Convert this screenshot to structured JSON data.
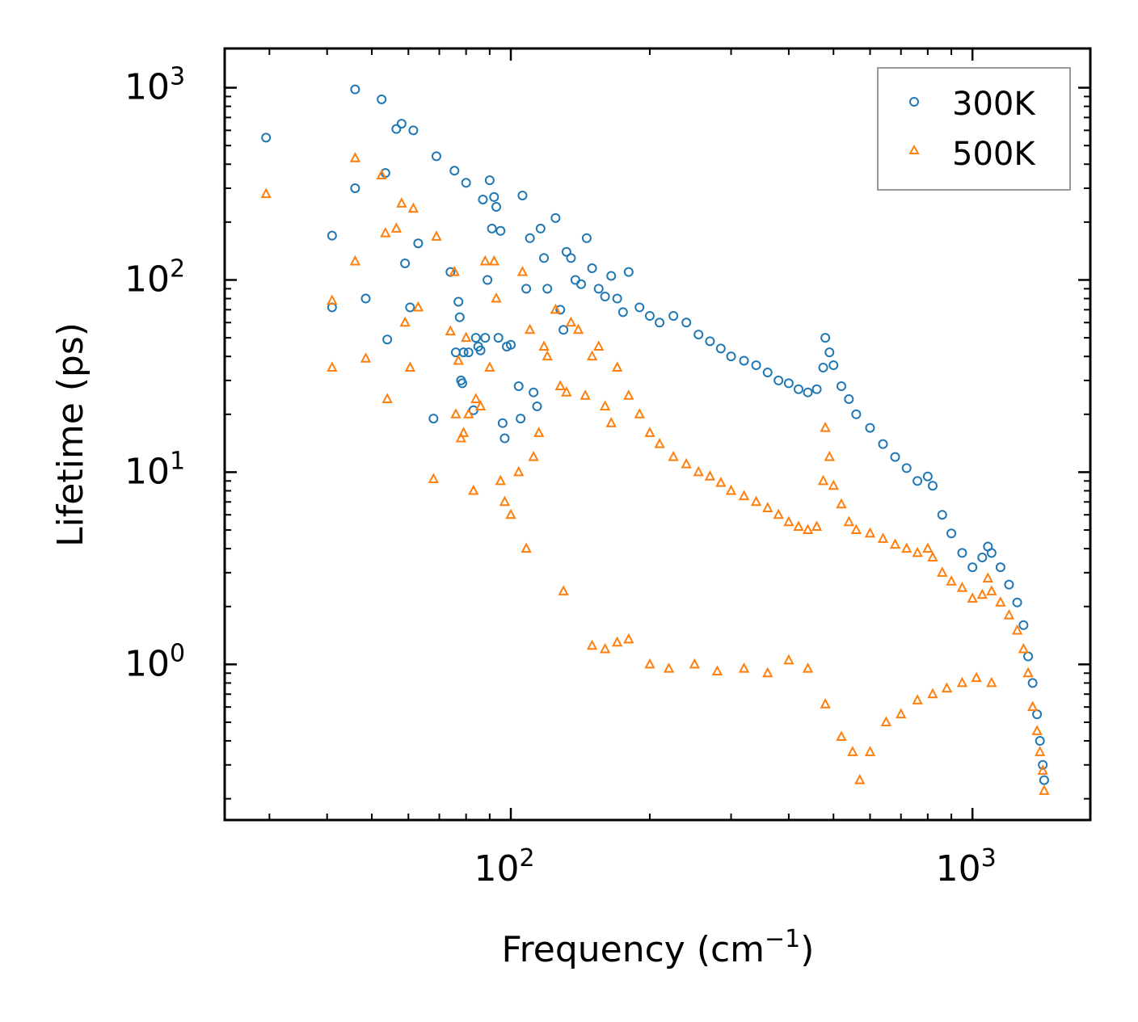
{
  "chart_data": {
    "type": "scatter",
    "title": "",
    "xlabel": "Frequency (cm",
    "xlabel_sup": "−1",
    "xlabel_end": ")",
    "ylabel": "Lifetime (ps)",
    "xscale": "log",
    "yscale": "log",
    "xlim": [
      24,
      1800
    ],
    "ylim": [
      0.155,
      1600
    ],
    "x_ticks": [
      {
        "base": "10",
        "exp": "2",
        "value": 100
      },
      {
        "base": "10",
        "exp": "3",
        "value": 1000
      }
    ],
    "y_ticks": [
      {
        "base": "10",
        "exp": "0",
        "value": 1
      },
      {
        "base": "10",
        "exp": "1",
        "value": 10
      },
      {
        "base": "10",
        "exp": "2",
        "value": 100
      },
      {
        "base": "10",
        "exp": "3",
        "value": 1000
      }
    ],
    "legend_position": "top-right",
    "series": [
      {
        "name": "300K",
        "marker": "circle",
        "color": "#1f77b4",
        "points": [
          [
            29.5,
            550
          ],
          [
            41,
            170
          ],
          [
            41,
            72
          ],
          [
            46,
            980
          ],
          [
            46,
            300
          ],
          [
            48.5,
            80
          ],
          [
            52.5,
            870
          ],
          [
            53.5,
            360
          ],
          [
            54,
            49
          ],
          [
            56.5,
            610
          ],
          [
            58,
            650
          ],
          [
            59,
            122
          ],
          [
            60.5,
            72
          ],
          [
            61.5,
            600
          ],
          [
            63,
            155
          ],
          [
            68,
            19
          ],
          [
            69,
            440
          ],
          [
            74,
            110
          ],
          [
            75.5,
            370
          ],
          [
            76,
            42
          ],
          [
            77,
            77
          ],
          [
            77.5,
            64
          ],
          [
            78,
            30
          ],
          [
            78.5,
            29
          ],
          [
            79,
            42
          ],
          [
            80,
            320
          ],
          [
            81,
            42
          ],
          [
            83,
            21
          ],
          [
            84,
            50
          ],
          [
            85,
            45
          ],
          [
            86,
            43
          ],
          [
            87,
            262
          ],
          [
            88,
            50
          ],
          [
            89,
            100
          ],
          [
            90,
            330
          ],
          [
            91,
            185
          ],
          [
            92,
            270
          ],
          [
            93,
            240
          ],
          [
            94,
            50
          ],
          [
            95,
            180
          ],
          [
            96,
            18
          ],
          [
            97,
            15
          ],
          [
            98,
            45
          ],
          [
            100,
            46
          ],
          [
            104,
            28
          ],
          [
            105,
            19
          ],
          [
            106,
            275
          ],
          [
            108,
            90
          ],
          [
            110,
            165
          ],
          [
            112,
            26
          ],
          [
            114,
            22
          ],
          [
            116,
            185
          ],
          [
            118,
            130
          ],
          [
            120,
            90
          ],
          [
            125,
            210
          ],
          [
            128,
            70
          ],
          [
            130,
            55
          ],
          [
            132,
            140
          ],
          [
            135,
            130
          ],
          [
            138,
            100
          ],
          [
            142,
            95
          ],
          [
            146,
            165
          ],
          [
            150,
            115
          ],
          [
            155,
            90
          ],
          [
            160,
            82
          ],
          [
            165,
            105
          ],
          [
            170,
            80
          ],
          [
            175,
            68
          ],
          [
            180,
            110
          ],
          [
            190,
            72
          ],
          [
            200,
            65
          ],
          [
            210,
            60
          ],
          [
            225,
            65
          ],
          [
            240,
            60
          ],
          [
            255,
            52
          ],
          [
            270,
            48
          ],
          [
            285,
            44
          ],
          [
            300,
            40
          ],
          [
            320,
            38
          ],
          [
            340,
            36
          ],
          [
            360,
            33
          ],
          [
            380,
            30
          ],
          [
            400,
            29
          ],
          [
            420,
            27
          ],
          [
            440,
            26
          ],
          [
            460,
            27
          ],
          [
            475,
            35
          ],
          [
            480,
            50
          ],
          [
            490,
            42
          ],
          [
            500,
            36
          ],
          [
            520,
            28
          ],
          [
            540,
            24
          ],
          [
            560,
            20
          ],
          [
            600,
            17
          ],
          [
            640,
            14
          ],
          [
            680,
            12
          ],
          [
            720,
            10.5
          ],
          [
            760,
            9
          ],
          [
            800,
            9.5
          ],
          [
            820,
            8.5
          ],
          [
            860,
            6
          ],
          [
            900,
            4.8
          ],
          [
            950,
            3.8
          ],
          [
            1000,
            3.2
          ],
          [
            1050,
            3.6
          ],
          [
            1080,
            4.1
          ],
          [
            1100,
            3.8
          ],
          [
            1150,
            3.2
          ],
          [
            1200,
            2.6
          ],
          [
            1250,
            2.1
          ],
          [
            1290,
            1.6
          ],
          [
            1320,
            1.1
          ],
          [
            1350,
            0.8
          ],
          [
            1380,
            0.55
          ],
          [
            1400,
            0.4
          ],
          [
            1420,
            0.3
          ],
          [
            1430,
            0.25
          ]
        ]
      },
      {
        "name": "500K",
        "marker": "triangle",
        "color": "#ff7f0e",
        "points": [
          [
            29.5,
            280
          ],
          [
            41,
            78
          ],
          [
            41,
            35
          ],
          [
            46,
            430
          ],
          [
            46,
            125
          ],
          [
            48.5,
            39
          ],
          [
            52.5,
            350
          ],
          [
            53.5,
            175
          ],
          [
            54,
            24
          ],
          [
            56.5,
            185
          ],
          [
            58,
            250
          ],
          [
            59,
            60
          ],
          [
            60.5,
            35
          ],
          [
            61.5,
            235
          ],
          [
            63,
            72
          ],
          [
            68,
            9.2
          ],
          [
            69,
            168
          ],
          [
            74,
            54
          ],
          [
            75.5,
            110
          ],
          [
            76,
            20
          ],
          [
            77,
            38
          ],
          [
            78,
            15
          ],
          [
            79,
            16
          ],
          [
            80,
            50
          ],
          [
            81,
            20
          ],
          [
            83,
            8
          ],
          [
            84,
            24
          ],
          [
            86,
            22
          ],
          [
            88,
            125
          ],
          [
            90,
            35
          ],
          [
            92,
            125
          ],
          [
            93,
            80
          ],
          [
            95,
            9
          ],
          [
            97,
            7
          ],
          [
            100,
            6
          ],
          [
            104,
            10
          ],
          [
            106,
            110
          ],
          [
            108,
            4
          ],
          [
            110,
            55
          ],
          [
            112,
            12
          ],
          [
            115,
            16
          ],
          [
            118,
            45
          ],
          [
            120,
            40
          ],
          [
            125,
            70
          ],
          [
            128,
            28
          ],
          [
            130,
            2.4
          ],
          [
            132,
            26
          ],
          [
            135,
            60
          ],
          [
            140,
            55
          ],
          [
            145,
            25
          ],
          [
            150,
            40
          ],
          [
            155,
            45
          ],
          [
            160,
            22
          ],
          [
            165,
            18
          ],
          [
            170,
            35
          ],
          [
            180,
            25
          ],
          [
            190,
            20
          ],
          [
            200,
            16
          ],
          [
            210,
            14
          ],
          [
            225,
            12
          ],
          [
            240,
            11
          ],
          [
            255,
            10
          ],
          [
            270,
            9.5
          ],
          [
            285,
            8.8
          ],
          [
            300,
            8
          ],
          [
            320,
            7.5
          ],
          [
            340,
            7
          ],
          [
            360,
            6.5
          ],
          [
            380,
            6
          ],
          [
            400,
            5.5
          ],
          [
            420,
            5.2
          ],
          [
            440,
            5
          ],
          [
            460,
            5.2
          ],
          [
            475,
            9
          ],
          [
            480,
            17
          ],
          [
            490,
            12
          ],
          [
            500,
            8.5
          ],
          [
            520,
            6.8
          ],
          [
            540,
            5.5
          ],
          [
            560,
            5
          ],
          [
            600,
            4.8
          ],
          [
            640,
            4.5
          ],
          [
            680,
            4.2
          ],
          [
            720,
            4
          ],
          [
            760,
            3.8
          ],
          [
            800,
            4
          ],
          [
            820,
            3.6
          ],
          [
            860,
            3
          ],
          [
            900,
            2.7
          ],
          [
            950,
            2.5
          ],
          [
            1000,
            2.2
          ],
          [
            1050,
            2.3
          ],
          [
            1080,
            2.8
          ],
          [
            1100,
            2.4
          ],
          [
            1150,
            2.1
          ],
          [
            1200,
            1.8
          ],
          [
            1250,
            1.5
          ],
          [
            1290,
            1.2
          ],
          [
            1320,
            0.9
          ],
          [
            1350,
            0.6
          ],
          [
            1380,
            0.45
          ],
          [
            1400,
            0.35
          ],
          [
            1420,
            0.28
          ],
          [
            1430,
            0.22
          ],
          [
            150,
            1.25
          ],
          [
            160,
            1.2
          ],
          [
            170,
            1.3
          ],
          [
            180,
            1.35
          ],
          [
            200,
            1.0
          ],
          [
            220,
            0.95
          ],
          [
            250,
            1.0
          ],
          [
            280,
            0.92
          ],
          [
            320,
            0.95
          ],
          [
            360,
            0.9
          ],
          [
            400,
            1.05
          ],
          [
            440,
            0.95
          ],
          [
            480,
            0.62
          ],
          [
            520,
            0.42
          ],
          [
            550,
            0.35
          ],
          [
            570,
            0.25
          ],
          [
            600,
            0.35
          ],
          [
            650,
            0.5
          ],
          [
            700,
            0.55
          ],
          [
            760,
            0.65
          ],
          [
            820,
            0.7
          ],
          [
            880,
            0.75
          ],
          [
            950,
            0.8
          ],
          [
            1020,
            0.85
          ],
          [
            1100,
            0.8
          ]
        ]
      }
    ]
  }
}
